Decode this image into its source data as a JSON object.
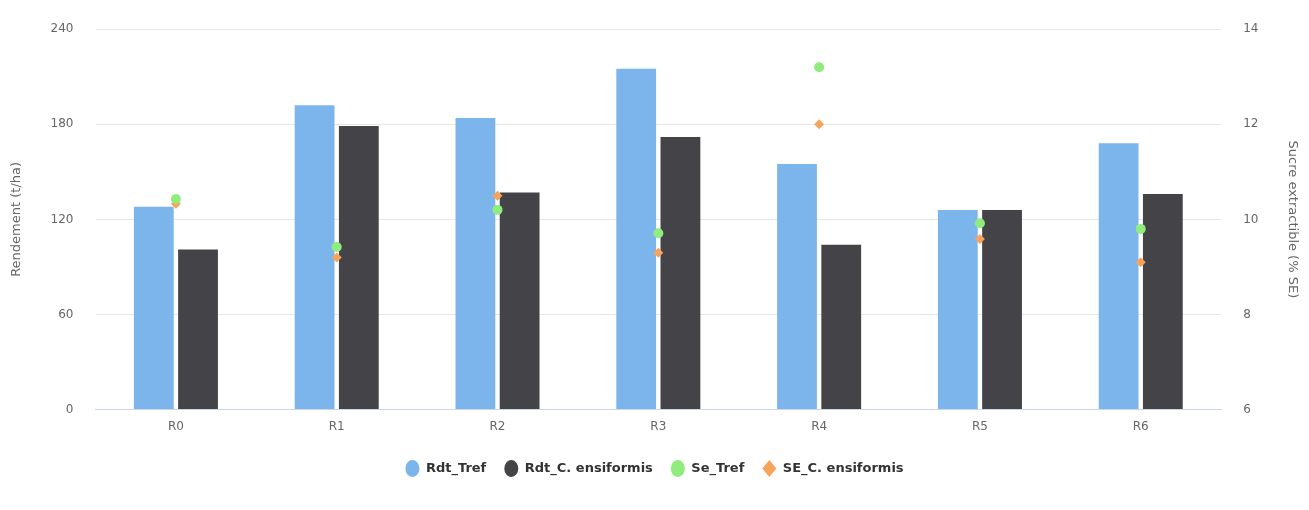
{
  "chart_data": {
    "type": "bar",
    "categories": [
      "R0",
      "R1",
      "R2",
      "R3",
      "R4",
      "R5",
      "R6"
    ],
    "ylabel": "Rendement (t/ha)",
    "y2label": "Sucre extractible (% SE)",
    "ylim": [
      0,
      240
    ],
    "yticks": [
      0,
      60,
      120,
      180,
      240
    ],
    "y2lim": [
      6,
      14
    ],
    "y2ticks": [
      6,
      8,
      10,
      12,
      14
    ],
    "grid": "y",
    "legend": "bottom",
    "series": [
      {
        "name": "Rdt_Tref",
        "color": "#7cb5ec",
        "values": [
          128,
          192,
          184,
          215,
          155,
          126,
          168
        ]
      },
      {
        "name": "Rdt_C. ensiformis",
        "color": "#434348",
        "values": [
          101,
          179,
          137,
          172,
          104,
          126,
          136
        ]
      },
      {
        "name": "Se_Tref",
        "type": "scatter",
        "axis": "y2",
        "marker": "circle",
        "color": "#90ed7d",
        "x": [
          "R0",
          "R1",
          "R2",
          "R3",
          "R4",
          "R5",
          "R6"
        ],
        "values": [
          10.43,
          9.42,
          10.2,
          9.71,
          13.2,
          9.92,
          9.8
        ]
      },
      {
        "name": "SE_C. ensiformis",
        "type": "scatter",
        "axis": "y2",
        "marker": "diamond",
        "color": "#f7a35c",
        "x": [
          "R0",
          "R1",
          "R2",
          "R3",
          "R4",
          "R5",
          "R6"
        ],
        "values": [
          10.33,
          9.2,
          10.5,
          9.3,
          12.0,
          9.59,
          9.1
        ]
      }
    ]
  }
}
